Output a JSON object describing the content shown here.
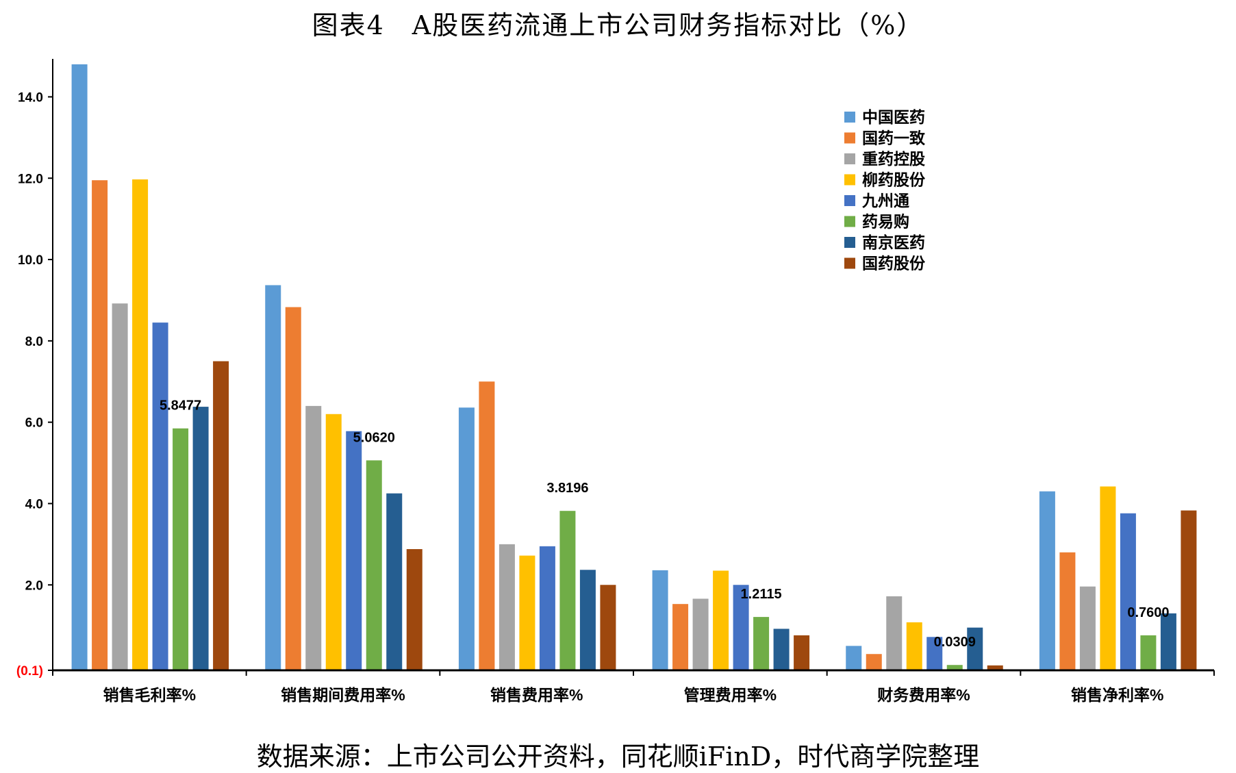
{
  "chart_data": {
    "type": "bar",
    "title": "图表4　A股医药流通上市公司财务指标对比（%）",
    "source": "数据来源：上市公司公开资料，同花顺iFinD，时代商学院整理",
    "categories": [
      "销售毛利率%",
      "销售期间费用率%",
      "销售费用率%",
      "管理费用率%",
      "财务费用率%",
      "销售净利率%"
    ],
    "ylim": [
      -0.1,
      15
    ],
    "yticks": [
      {
        "value": -0.1,
        "label": "(0.1)",
        "color": "#ff0000"
      },
      {
        "value": 2,
        "label": "2.0"
      },
      {
        "value": 4,
        "label": "4.0"
      },
      {
        "value": 6,
        "label": "6.0"
      },
      {
        "value": 8,
        "label": "8.0"
      },
      {
        "value": 10,
        "label": "10.0"
      },
      {
        "value": 12,
        "label": "12.0"
      },
      {
        "value": 14,
        "label": "14.0"
      }
    ],
    "legend_position": "top-right",
    "series": [
      {
        "name": "中国医药",
        "color": "#5b9bd5",
        "values": [
          14.8,
          9.37,
          6.36,
          2.36,
          0.5,
          4.3
        ]
      },
      {
        "name": "国药一致",
        "color": "#ed7d31",
        "values": [
          11.95,
          8.83,
          7.0,
          1.53,
          0.3,
          2.8
        ]
      },
      {
        "name": "重药控股",
        "color": "#a5a5a5",
        "values": [
          8.92,
          6.4,
          3.0,
          1.66,
          1.72,
          1.96
        ]
      },
      {
        "name": "柳药股份",
        "color": "#ffc000",
        "values": [
          11.97,
          6.2,
          2.72,
          2.35,
          1.08,
          4.42
        ]
      },
      {
        "name": "九州通",
        "color": "#4472c4",
        "values": [
          8.45,
          5.78,
          2.95,
          2.0,
          0.72,
          3.76
        ]
      },
      {
        "name": "药易购",
        "color": "#70ad47",
        "values": [
          5.8477,
          5.062,
          3.8196,
          1.2115,
          0.0309,
          0.76
        ]
      },
      {
        "name": "南京医药",
        "color": "#255e91",
        "values": [
          6.38,
          4.25,
          2.37,
          0.92,
          0.95,
          1.3
        ]
      },
      {
        "name": "国药股份",
        "color": "#9e480e",
        "values": [
          7.5,
          2.88,
          2.0,
          0.76,
          0.02,
          3.83
        ]
      }
    ],
    "data_labels": [
      {
        "category_index": 0,
        "series_index": 5,
        "text": "5.8477"
      },
      {
        "category_index": 1,
        "series_index": 5,
        "text": "5.0620"
      },
      {
        "category_index": 2,
        "series_index": 5,
        "text": "3.8196"
      },
      {
        "category_index": 3,
        "series_index": 5,
        "text": "1.2115"
      },
      {
        "category_index": 4,
        "series_index": 5,
        "text": "0.0309"
      },
      {
        "category_index": 5,
        "series_index": 5,
        "text": "0.7600"
      }
    ]
  }
}
